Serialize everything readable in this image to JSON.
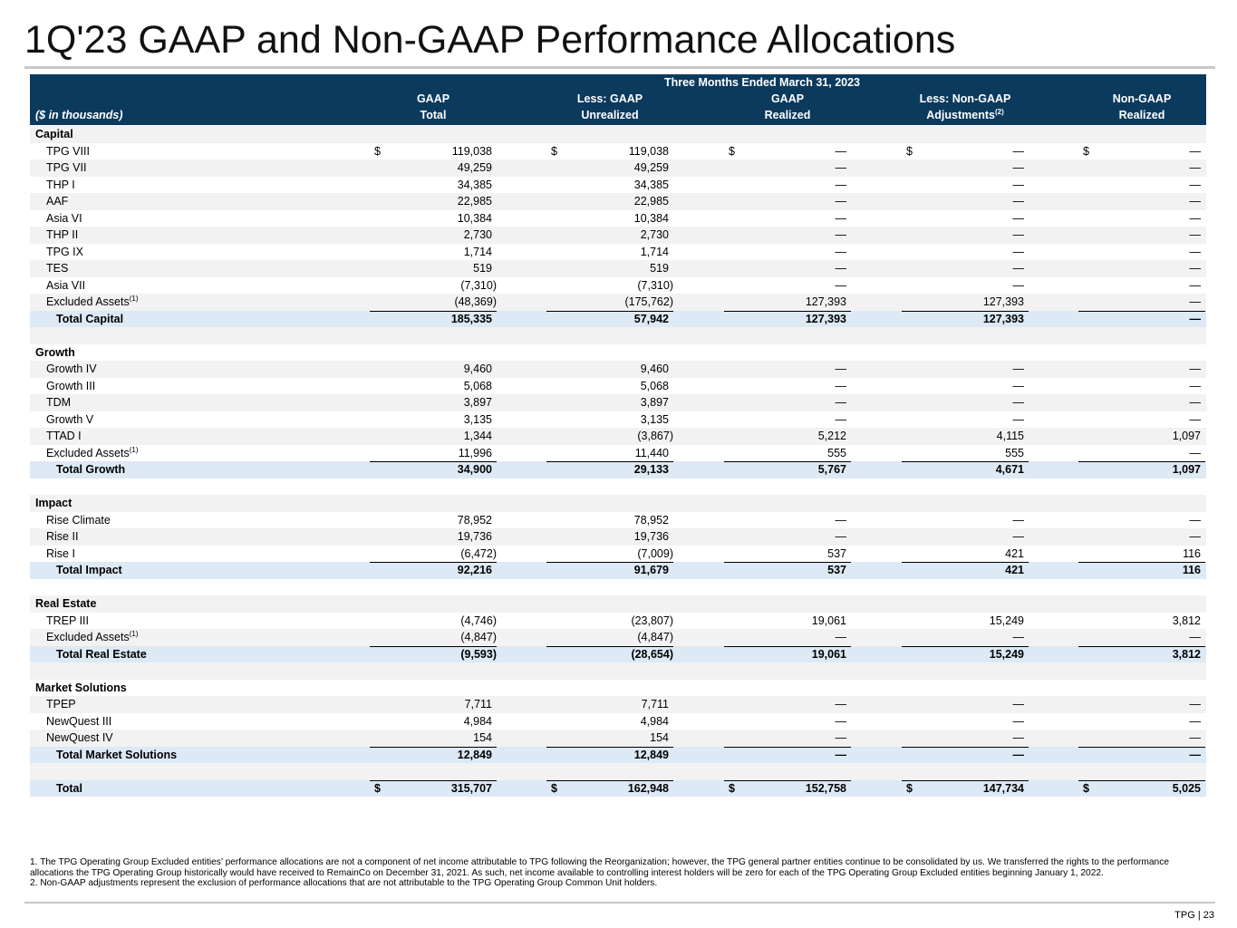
{
  "header": {
    "title": "1Q'23 GAAP and Non-GAAP Performance Allocations"
  },
  "table": {
    "period": "Three Months Ended March 31, 2023",
    "units": "($ in thousands)",
    "columns": [
      {
        "line1": "GAAP",
        "line2": "Total"
      },
      {
        "line1": "Less: GAAP",
        "line2": "Unrealized"
      },
      {
        "line1": "GAAP",
        "line2": "Realized"
      },
      {
        "line1": "Less: Non-GAAP",
        "line2": "Adjustments",
        "note": "(2)"
      },
      {
        "line1": "Non-GAAP",
        "line2": "Realized"
      }
    ],
    "currency": "$",
    "sections": [
      {
        "name": "Capital",
        "rows": [
          {
            "label": "TPG VIII",
            "values": [
              "119,038",
              "119,038",
              "—",
              "—",
              "—"
            ],
            "currency": "$"
          },
          {
            "label": "TPG VII",
            "values": [
              "49,259",
              "49,259",
              "—",
              "—",
              "—"
            ]
          },
          {
            "label": "THP I",
            "values": [
              "34,385",
              "34,385",
              "—",
              "—",
              "—"
            ]
          },
          {
            "label": "AAF",
            "values": [
              "22,985",
              "22,985",
              "—",
              "—",
              "—"
            ]
          },
          {
            "label": "Asia VI",
            "values": [
              "10,384",
              "10,384",
              "—",
              "—",
              "—"
            ]
          },
          {
            "label": "THP II",
            "values": [
              "2,730",
              "2,730",
              "—",
              "—",
              "—"
            ]
          },
          {
            "label": "TPG IX",
            "values": [
              "1,714",
              "1,714",
              "—",
              "—",
              "—"
            ]
          },
          {
            "label": "TES",
            "values": [
              "519",
              "519",
              "—",
              "—",
              "—"
            ]
          },
          {
            "label": "Asia VII",
            "values": [
              "(7,310)",
              "(7,310)",
              "—",
              "—",
              "—"
            ]
          },
          {
            "label": "Excluded Assets",
            "note": "(1)",
            "values": [
              "(48,369)",
              "(175,762)",
              "127,393",
              "127,393",
              "—"
            ]
          }
        ],
        "total": {
          "label": "Total Capital",
          "values": [
            "185,335",
            "57,942",
            "127,393",
            "127,393",
            "—"
          ]
        }
      },
      {
        "name": "Growth",
        "rows": [
          {
            "label": "Growth IV",
            "values": [
              "9,460",
              "9,460",
              "—",
              "—",
              "—"
            ]
          },
          {
            "label": "Growth III",
            "values": [
              "5,068",
              "5,068",
              "—",
              "—",
              "—"
            ]
          },
          {
            "label": "TDM",
            "values": [
              "3,897",
              "3,897",
              "—",
              "—",
              "—"
            ]
          },
          {
            "label": "Growth V",
            "values": [
              "3,135",
              "3,135",
              "—",
              "—",
              "—"
            ]
          },
          {
            "label": "TTAD I",
            "values": [
              "1,344",
              "(3,867)",
              "5,212",
              "4,115",
              "1,097"
            ]
          },
          {
            "label": "Excluded Assets",
            "note": "(1)",
            "values": [
              "11,996",
              "11,440",
              "555",
              "555",
              "—"
            ]
          }
        ],
        "total": {
          "label": "Total Growth",
          "values": [
            "34,900",
            "29,133",
            "5,767",
            "4,671",
            "1,097"
          ]
        }
      },
      {
        "name": "Impact",
        "rows": [
          {
            "label": "Rise Climate",
            "values": [
              "78,952",
              "78,952",
              "—",
              "—",
              "—"
            ]
          },
          {
            "label": "Rise II",
            "values": [
              "19,736",
              "19,736",
              "—",
              "—",
              "—"
            ]
          },
          {
            "label": "Rise I",
            "values": [
              "(6,472)",
              "(7,009)",
              "537",
              "421",
              "116"
            ]
          }
        ],
        "total": {
          "label": "Total Impact",
          "values": [
            "92,216",
            "91,679",
            "537",
            "421",
            "116"
          ]
        }
      },
      {
        "name": "Real Estate",
        "rows": [
          {
            "label": "TREP III",
            "values": [
              "(4,746)",
              "(23,807)",
              "19,061",
              "15,249",
              "3,812"
            ]
          },
          {
            "label": "Excluded Assets",
            "note": "(1)",
            "values": [
              "(4,847)",
              "(4,847)",
              "—",
              "—",
              "—"
            ]
          }
        ],
        "total": {
          "label": "Total Real Estate",
          "values": [
            "(9,593)",
            "(28,654)",
            "19,061",
            "15,249",
            "3,812"
          ]
        }
      },
      {
        "name": "Market Solutions",
        "rows": [
          {
            "label": "TPEP",
            "values": [
              "7,711",
              "7,711",
              "—",
              "—",
              "—"
            ]
          },
          {
            "label": "NewQuest III",
            "values": [
              "4,984",
              "4,984",
              "—",
              "—",
              "—"
            ]
          },
          {
            "label": "NewQuest IV",
            "values": [
              "154",
              "154",
              "—",
              "—",
              "—"
            ]
          }
        ],
        "total": {
          "label": "Total Market Solutions",
          "values": [
            "12,849",
            "12,849",
            "—",
            "—",
            "—"
          ]
        }
      }
    ],
    "grand_total": {
      "label": "Total",
      "values": [
        "315,707",
        "162,948",
        "152,758",
        "147,734",
        "5,025"
      ],
      "currency": "$"
    }
  },
  "footnotes": [
    "1. The TPG Operating Group Excluded entities’ performance allocations are not a component of net income attributable to TPG following the Reorganization; however, the TPG general partner entities continue to be consolidated by us. We transferred the rights to the performance allocations the TPG Operating Group historically would have received to RemainCo on December 31, 2021. As such, net income available to controlling interest holders will be zero for each of the TPG Operating Group Excluded entities beginning January 1, 2022.",
    "2. Non-GAAP adjustments represent the exclusion of performance allocations that are not attributable to the TPG Operating Group Common Unit holders."
  ],
  "footer": {
    "page": "TPG | 23"
  }
}
